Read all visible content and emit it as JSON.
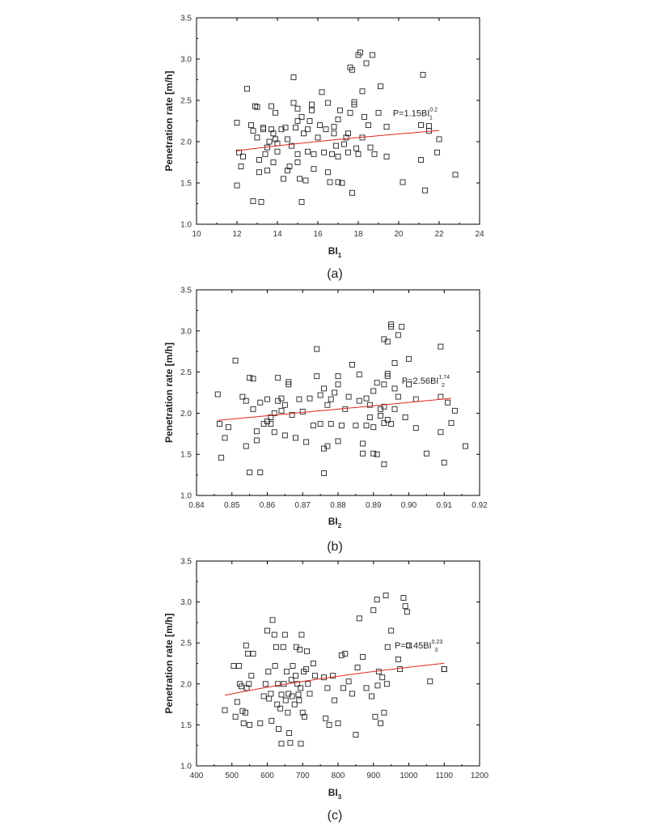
{
  "chart_data": [
    {
      "type": "scatter",
      "caption": "(a)",
      "ylabel": "Penetration rate [m/h]",
      "xlabel_main": "BI",
      "xlabel_sub": "1",
      "xlim": [
        10,
        24
      ],
      "ylim": [
        1.0,
        3.5
      ],
      "xticks": [
        "10",
        "12",
        "14",
        "16",
        "18",
        "20",
        "22",
        "24"
      ],
      "yticks": [
        "1.0",
        "1.5",
        "2.0",
        "2.5",
        "3.0",
        "3.5"
      ],
      "xtick_values": [
        10,
        12,
        14,
        16,
        18,
        20,
        22,
        24
      ],
      "ytick_values": [
        1.0,
        1.5,
        2.0,
        2.5,
        3.0,
        3.5
      ],
      "equation": {
        "main": "P=1.15BI",
        "sub": "1",
        "sup": "0.2"
      },
      "fit": {
        "coef": 1.15,
        "exp": 0.2,
        "xrange": [
          12,
          22
        ]
      },
      "legend": "none",
      "grid": false,
      "points": [
        [
          12.0,
          2.23
        ],
        [
          12.1,
          1.87
        ],
        [
          12.0,
          1.47
        ],
        [
          12.2,
          1.7
        ],
        [
          12.3,
          1.82
        ],
        [
          12.5,
          2.64
        ],
        [
          12.7,
          2.2
        ],
        [
          12.8,
          2.13
        ],
        [
          12.8,
          1.28
        ],
        [
          12.9,
          2.43
        ],
        [
          13.0,
          2.42
        ],
        [
          13.0,
          2.05
        ],
        [
          13.1,
          1.78
        ],
        [
          13.1,
          1.63
        ],
        [
          13.2,
          1.27
        ],
        [
          13.3,
          2.15
        ],
        [
          13.3,
          2.17
        ],
        [
          13.4,
          1.85
        ],
        [
          13.5,
          1.93
        ],
        [
          13.5,
          1.65
        ],
        [
          13.6,
          2.0
        ],
        [
          13.7,
          2.43
        ],
        [
          13.7,
          2.15
        ],
        [
          13.8,
          2.1
        ],
        [
          13.8,
          1.75
        ],
        [
          13.9,
          2.35
        ],
        [
          13.9,
          2.03
        ],
        [
          14.0,
          1.98
        ],
        [
          14.0,
          1.88
        ],
        [
          14.2,
          2.15
        ],
        [
          14.3,
          1.55
        ],
        [
          14.4,
          2.17
        ],
        [
          14.5,
          2.03
        ],
        [
          14.5,
          1.65
        ],
        [
          14.6,
          1.7
        ],
        [
          14.7,
          1.95
        ],
        [
          14.8,
          2.78
        ],
        [
          14.8,
          2.47
        ],
        [
          14.9,
          2.17
        ],
        [
          15.0,
          2.25
        ],
        [
          15.0,
          2.4
        ],
        [
          15.0,
          1.75
        ],
        [
          15.0,
          1.85
        ],
        [
          15.1,
          1.55
        ],
        [
          15.2,
          1.27
        ],
        [
          15.2,
          2.3
        ],
        [
          15.3,
          2.1
        ],
        [
          15.4,
          1.53
        ],
        [
          15.5,
          2.15
        ],
        [
          15.5,
          1.88
        ],
        [
          15.6,
          2.25
        ],
        [
          15.7,
          2.45
        ],
        [
          15.7,
          2.38
        ],
        [
          15.8,
          1.67
        ],
        [
          15.8,
          1.85
        ],
        [
          16.0,
          2.05
        ],
        [
          16.1,
          2.2
        ],
        [
          16.2,
          2.6
        ],
        [
          16.3,
          1.87
        ],
        [
          16.4,
          2.15
        ],
        [
          16.5,
          2.47
        ],
        [
          16.5,
          1.63
        ],
        [
          16.6,
          1.51
        ],
        [
          16.7,
          1.85
        ],
        [
          16.8,
          2.18
        ],
        [
          16.8,
          2.1
        ],
        [
          16.9,
          1.95
        ],
        [
          17.0,
          2.27
        ],
        [
          17.0,
          1.82
        ],
        [
          17.0,
          1.51
        ],
        [
          17.1,
          2.38
        ],
        [
          17.2,
          1.5
        ],
        [
          17.3,
          1.97
        ],
        [
          17.4,
          2.05
        ],
        [
          17.5,
          2.1
        ],
        [
          17.5,
          1.87
        ],
        [
          17.6,
          2.35
        ],
        [
          17.6,
          2.9
        ],
        [
          17.7,
          1.38
        ],
        [
          17.7,
          2.87
        ],
        [
          17.8,
          2.48
        ],
        [
          17.8,
          2.45
        ],
        [
          17.9,
          1.92
        ],
        [
          18.0,
          3.05
        ],
        [
          18.0,
          1.85
        ],
        [
          18.1,
          3.08
        ],
        [
          18.2,
          2.61
        ],
        [
          18.2,
          2.05
        ],
        [
          18.3,
          2.3
        ],
        [
          18.4,
          2.95
        ],
        [
          18.5,
          2.2
        ],
        [
          18.6,
          1.93
        ],
        [
          18.7,
          3.05
        ],
        [
          18.8,
          1.85
        ],
        [
          19.0,
          2.35
        ],
        [
          19.1,
          2.67
        ],
        [
          19.4,
          2.18
        ],
        [
          19.4,
          1.82
        ],
        [
          20.2,
          1.51
        ],
        [
          21.1,
          2.2
        ],
        [
          21.1,
          1.78
        ],
        [
          21.2,
          2.81
        ],
        [
          21.3,
          1.41
        ],
        [
          21.5,
          2.13
        ],
        [
          21.5,
          2.19
        ],
        [
          21.9,
          1.87
        ],
        [
          22.0,
          2.03
        ],
        [
          22.8,
          1.6
        ]
      ]
    },
    {
      "type": "scatter",
      "caption": "(b)",
      "ylabel": "Penetration rate [m/h]",
      "xlabel_main": "BI",
      "xlabel_sub": "2",
      "xlim": [
        0.84,
        0.92
      ],
      "ylim": [
        1.0,
        3.5
      ],
      "xticks": [
        "0.84",
        "0.85",
        "0.86",
        "0.87",
        "0.88",
        "0.89",
        "0.90",
        "0.91",
        "0.92"
      ],
      "yticks": [
        "1.0",
        "1.5",
        "2.0",
        "2.5",
        "3.0",
        "3.5"
      ],
      "xtick_values": [
        0.84,
        0.85,
        0.86,
        0.87,
        0.88,
        0.89,
        0.9,
        0.91,
        0.92
      ],
      "ytick_values": [
        1.0,
        1.5,
        2.0,
        2.5,
        3.0,
        3.5
      ],
      "equation": {
        "main": "P=2.56BI",
        "sub": "2",
        "sup": "1.74"
      },
      "fit": {
        "coef": 2.56,
        "exp": 1.74,
        "xrange": [
          0.846,
          0.912
        ]
      },
      "legend": "none",
      "grid": false,
      "points": [
        [
          0.846,
          2.23
        ],
        [
          0.8465,
          1.87
        ],
        [
          0.847,
          1.46
        ],
        [
          0.848,
          1.7
        ],
        [
          0.849,
          1.83
        ],
        [
          0.851,
          2.64
        ],
        [
          0.853,
          2.2
        ],
        [
          0.854,
          2.15
        ],
        [
          0.854,
          1.6
        ],
        [
          0.855,
          1.28
        ],
        [
          0.855,
          2.43
        ],
        [
          0.856,
          2.42
        ],
        [
          0.856,
          2.05
        ],
        [
          0.857,
          1.78
        ],
        [
          0.857,
          1.67
        ],
        [
          0.858,
          2.13
        ],
        [
          0.858,
          1.28
        ],
        [
          0.859,
          1.87
        ],
        [
          0.86,
          2.17
        ],
        [
          0.86,
          1.9
        ],
        [
          0.861,
          1.87
        ],
        [
          0.861,
          1.95
        ],
        [
          0.862,
          1.77
        ],
        [
          0.862,
          2.0
        ],
        [
          0.863,
          2.15
        ],
        [
          0.863,
          2.43
        ],
        [
          0.864,
          2.03
        ],
        [
          0.864,
          2.18
        ],
        [
          0.865,
          2.1
        ],
        [
          0.865,
          1.73
        ],
        [
          0.866,
          2.38
        ],
        [
          0.866,
          2.35
        ],
        [
          0.867,
          1.98
        ],
        [
          0.868,
          1.7
        ],
        [
          0.869,
          2.17
        ],
        [
          0.87,
          2.02
        ],
        [
          0.871,
          1.65
        ],
        [
          0.872,
          2.18
        ],
        [
          0.873,
          1.85
        ],
        [
          0.874,
          2.78
        ],
        [
          0.874,
          2.45
        ],
        [
          0.875,
          2.22
        ],
        [
          0.875,
          1.87
        ],
        [
          0.876,
          1.57
        ],
        [
          0.876,
          1.27
        ],
        [
          0.876,
          2.3
        ],
        [
          0.877,
          2.1
        ],
        [
          0.877,
          1.6
        ],
        [
          0.878,
          2.17
        ],
        [
          0.878,
          1.87
        ],
        [
          0.879,
          2.25
        ],
        [
          0.88,
          2.45
        ],
        [
          0.88,
          2.35
        ],
        [
          0.88,
          1.66
        ],
        [
          0.881,
          1.85
        ],
        [
          0.882,
          2.05
        ],
        [
          0.883,
          2.2
        ],
        [
          0.884,
          2.59
        ],
        [
          0.885,
          1.85
        ],
        [
          0.886,
          2.15
        ],
        [
          0.886,
          2.47
        ],
        [
          0.887,
          1.63
        ],
        [
          0.887,
          1.51
        ],
        [
          0.888,
          1.85
        ],
        [
          0.888,
          2.18
        ],
        [
          0.889,
          2.1
        ],
        [
          0.889,
          1.95
        ],
        [
          0.89,
          2.27
        ],
        [
          0.89,
          1.83
        ],
        [
          0.89,
          1.51
        ],
        [
          0.891,
          2.37
        ],
        [
          0.891,
          1.5
        ],
        [
          0.892,
          1.97
        ],
        [
          0.892,
          2.05
        ],
        [
          0.893,
          2.08
        ],
        [
          0.893,
          1.88
        ],
        [
          0.893,
          2.35
        ],
        [
          0.893,
          2.9
        ],
        [
          0.893,
          1.38
        ],
        [
          0.894,
          2.87
        ],
        [
          0.894,
          2.48
        ],
        [
          0.894,
          2.45
        ],
        [
          0.894,
          1.92
        ],
        [
          0.895,
          3.05
        ],
        [
          0.895,
          1.87
        ],
        [
          0.895,
          3.08
        ],
        [
          0.896,
          2.61
        ],
        [
          0.896,
          2.05
        ],
        [
          0.896,
          2.3
        ],
        [
          0.897,
          2.95
        ],
        [
          0.897,
          2.2
        ],
        [
          0.898,
          3.05
        ],
        [
          0.899,
          1.95
        ],
        [
          0.9,
          2.35
        ],
        [
          0.9,
          2.66
        ],
        [
          0.902,
          2.17
        ],
        [
          0.902,
          1.82
        ],
        [
          0.905,
          1.51
        ],
        [
          0.909,
          2.81
        ],
        [
          0.909,
          2.2
        ],
        [
          0.909,
          1.77
        ],
        [
          0.91,
          1.4
        ],
        [
          0.911,
          2.13
        ],
        [
          0.912,
          1.88
        ],
        [
          0.913,
          2.03
        ],
        [
          0.916,
          1.6
        ]
      ]
    },
    {
      "type": "scatter",
      "caption": "(c)",
      "ylabel": "Penetration rate [m/h]",
      "xlabel_main": "BI",
      "xlabel_sub": "3",
      "xlim": [
        400,
        1200
      ],
      "ylim": [
        1.0,
        3.5
      ],
      "xticks": [
        "400",
        "500",
        "600",
        "700",
        "800",
        "900",
        "1000",
        "1100",
        "1200"
      ],
      "yticks": [
        "1.0",
        "1.5",
        "2.0",
        "2.5",
        "3.0",
        "3.5"
      ],
      "xtick_values": [
        400,
        500,
        600,
        700,
        800,
        900,
        1000,
        1100,
        1200
      ],
      "ytick_values": [
        1.0,
        1.5,
        2.0,
        2.5,
        3.0,
        3.5
      ],
      "equation": {
        "main": "P=0.45BI",
        "sub": "3",
        "sup": "0.23"
      },
      "fit": {
        "coef": 0.45,
        "exp": 0.23,
        "xrange": [
          480,
          1100
        ]
      },
      "legend": "none",
      "grid": false,
      "points": [
        [
          480,
          1.68
        ],
        [
          505,
          2.22
        ],
        [
          510,
          1.6
        ],
        [
          515,
          1.78
        ],
        [
          520,
          2.22
        ],
        [
          522,
          2.0
        ],
        [
          527,
          1.97
        ],
        [
          530,
          1.67
        ],
        [
          533,
          1.52
        ],
        [
          538,
          1.65
        ],
        [
          540,
          2.47
        ],
        [
          542,
          1.95
        ],
        [
          545,
          2.37
        ],
        [
          548,
          2.0
        ],
        [
          550,
          1.5
        ],
        [
          555,
          2.1
        ],
        [
          560,
          2.37
        ],
        [
          580,
          1.52
        ],
        [
          590,
          1.85
        ],
        [
          595,
          2.0
        ],
        [
          600,
          2.65
        ],
        [
          603,
          2.15
        ],
        [
          605,
          1.82
        ],
        [
          610,
          1.88
        ],
        [
          612,
          1.55
        ],
        [
          615,
          2.78
        ],
        [
          620,
          2.6
        ],
        [
          622,
          2.22
        ],
        [
          625,
          2.45
        ],
        [
          628,
          1.75
        ],
        [
          630,
          2.0
        ],
        [
          632,
          1.45
        ],
        [
          637,
          1.7
        ],
        [
          640,
          1.87
        ],
        [
          640,
          1.27
        ],
        [
          645,
          2.45
        ],
        [
          647,
          2.0
        ],
        [
          650,
          2.6
        ],
        [
          652,
          1.8
        ],
        [
          655,
          2.15
        ],
        [
          658,
          1.65
        ],
        [
          660,
          1.88
        ],
        [
          662,
          1.4
        ],
        [
          665,
          1.28
        ],
        [
          668,
          2.05
        ],
        [
          670,
          1.85
        ],
        [
          672,
          2.22
        ],
        [
          677,
          1.75
        ],
        [
          680,
          2.1
        ],
        [
          682,
          2.45
        ],
        [
          685,
          2.0
        ],
        [
          688,
          1.87
        ],
        [
          690,
          1.8
        ],
        [
          692,
          2.42
        ],
        [
          694,
          1.95
        ],
        [
          695,
          1.27
        ],
        [
          697,
          2.6
        ],
        [
          700,
          1.65
        ],
        [
          703,
          2.15
        ],
        [
          705,
          1.6
        ],
        [
          710,
          2.18
        ],
        [
          712,
          2.4
        ],
        [
          715,
          2.0
        ],
        [
          720,
          1.88
        ],
        [
          730,
          2.25
        ],
        [
          735,
          2.1
        ],
        [
          760,
          2.08
        ],
        [
          765,
          1.58
        ],
        [
          770,
          1.95
        ],
        [
          775,
          1.5
        ],
        [
          785,
          2.1
        ],
        [
          790,
          1.8
        ],
        [
          800,
          1.52
        ],
        [
          810,
          2.35
        ],
        [
          815,
          1.95
        ],
        [
          820,
          2.37
        ],
        [
          830,
          2.03
        ],
        [
          840,
          1.88
        ],
        [
          850,
          1.38
        ],
        [
          855,
          2.2
        ],
        [
          860,
          2.8
        ],
        [
          870,
          2.33
        ],
        [
          880,
          1.95
        ],
        [
          895,
          1.85
        ],
        [
          900,
          2.9
        ],
        [
          905,
          1.6
        ],
        [
          910,
          3.03
        ],
        [
          912,
          1.98
        ],
        [
          915,
          2.15
        ],
        [
          920,
          1.52
        ],
        [
          925,
          2.08
        ],
        [
          930,
          1.65
        ],
        [
          935,
          3.08
        ],
        [
          938,
          2.0
        ],
        [
          940,
          2.45
        ],
        [
          950,
          2.65
        ],
        [
          970,
          2.3
        ],
        [
          975,
          2.18
        ],
        [
          985,
          3.05
        ],
        [
          990,
          2.95
        ],
        [
          995,
          2.88
        ],
        [
          1000,
          2.47
        ],
        [
          1060,
          2.03
        ],
        [
          1100,
          2.18
        ],
        [
          1100,
          2.18
        ]
      ]
    }
  ]
}
